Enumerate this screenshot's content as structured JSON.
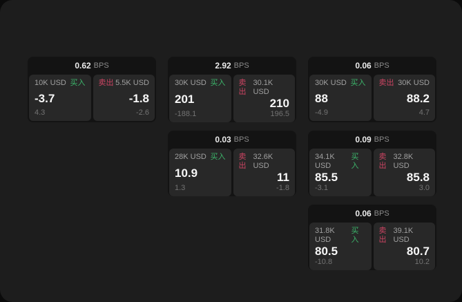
{
  "labels": {
    "bps_unit": "BPS",
    "buy": "买入",
    "sell": "卖出"
  },
  "colors": {
    "window_bg": "#1d1d1d",
    "card_bg": "#131313",
    "panel_bg": "#282828",
    "buy_green": "#3cb46a",
    "sell_red": "#cb4462"
  },
  "cards": [
    {
      "bps": "0.62",
      "buy": {
        "amount": "10K USD",
        "value": "-3.7",
        "sub": "4.3"
      },
      "sell": {
        "amount": "5.5K USD",
        "value": "-1.8",
        "sub": "-2.6"
      }
    },
    {
      "bps": "2.92",
      "buy": {
        "amount": "30K USD",
        "value": "201",
        "sub": "-188.1"
      },
      "sell": {
        "amount": "30.1K USD",
        "value": "210",
        "sub": "196.5"
      }
    },
    {
      "bps": "0.06",
      "buy": {
        "amount": "30K USD",
        "value": "88",
        "sub": "-4.9"
      },
      "sell": {
        "amount": "30K USD",
        "value": "88.2",
        "sub": "4.7"
      }
    },
    {
      "bps": "0.03",
      "buy": {
        "amount": "28K USD",
        "value": "10.9",
        "sub": "1.3"
      },
      "sell": {
        "amount": "32.6K USD",
        "value": "11",
        "sub": "-1.8"
      }
    },
    {
      "bps": "0.09",
      "buy": {
        "amount": "34.1K USD",
        "value": "85.5",
        "sub": "-3.1"
      },
      "sell": {
        "amount": "32.8K USD",
        "value": "85.8",
        "sub": "3.0"
      }
    },
    {
      "bps": "0.06",
      "buy": {
        "amount": "31.8K USD",
        "value": "80.5",
        "sub": "-10.8"
      },
      "sell": {
        "amount": "39.1K USD",
        "value": "80.7",
        "sub": "10.2"
      }
    }
  ]
}
